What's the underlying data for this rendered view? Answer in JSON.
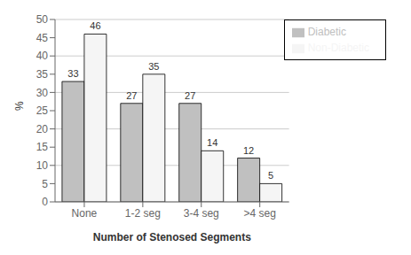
{
  "chart_data": {
    "type": "bar",
    "categories": [
      "None",
      "1-2 seg",
      "3-4 seg",
      ">4 seg"
    ],
    "series": [
      {
        "name": "Diabetic",
        "color": "#c0c0c0",
        "values": [
          33,
          27,
          27,
          12
        ]
      },
      {
        "name": "Non-Diabetic",
        "color": "#f5f5f5",
        "values": [
          46,
          35,
          14,
          5
        ]
      }
    ],
    "xlabel": "Number of Stenosed Segments",
    "ylabel": "%",
    "ylim": [
      0,
      50
    ],
    "yticks": [
      0,
      5,
      10,
      15,
      20,
      25,
      30,
      35,
      40,
      45,
      50
    ],
    "grid": true,
    "legend": "upper right",
    "data_labels": true
  }
}
